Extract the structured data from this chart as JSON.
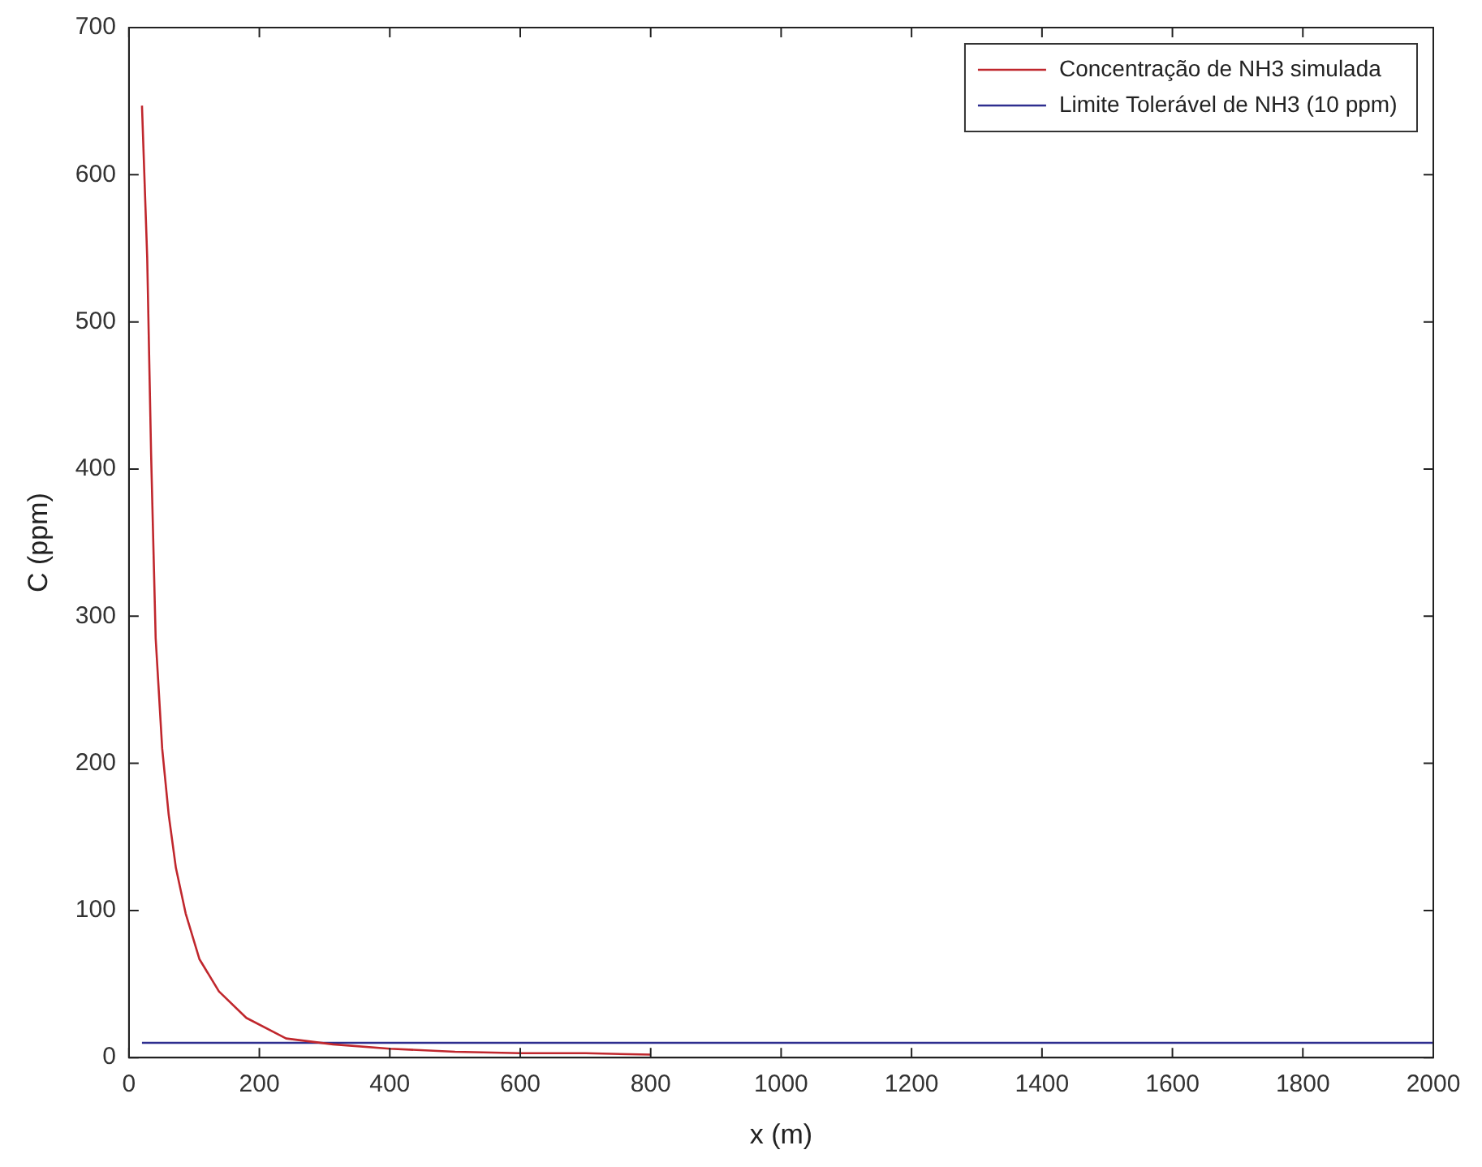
{
  "chart_data": {
    "type": "line",
    "xlabel": "x (m)",
    "ylabel": "C (ppm)",
    "xlim": [
      0,
      2000
    ],
    "ylim": [
      0,
      700
    ],
    "xticks": [
      0,
      200,
      400,
      600,
      800,
      1000,
      1200,
      1400,
      1600,
      1800,
      2000
    ],
    "yticks": [
      0,
      100,
      200,
      300,
      400,
      500,
      600,
      700
    ],
    "grid": false,
    "legend": "top right",
    "marker": "none",
    "line_style": "solid",
    "series": [
      {
        "name": "Concentração de NH3 simulada",
        "color": "#c0272d",
        "x": [
          20,
          28,
          34,
          41,
          51,
          61,
          72,
          87,
          108,
          138,
          180,
          241,
          313,
          400,
          500,
          600,
          700,
          800
        ],
        "values": [
          647,
          544,
          410,
          285,
          210,
          165,
          129,
          98,
          67,
          45,
          27,
          13,
          9,
          6,
          4,
          3,
          3,
          2
        ]
      },
      {
        "name": "Limite Tolerável de NH3 (10 ppm)",
        "color": "#2e2e8f",
        "x": [
          20,
          2000
        ],
        "values": [
          10,
          10
        ]
      }
    ]
  }
}
